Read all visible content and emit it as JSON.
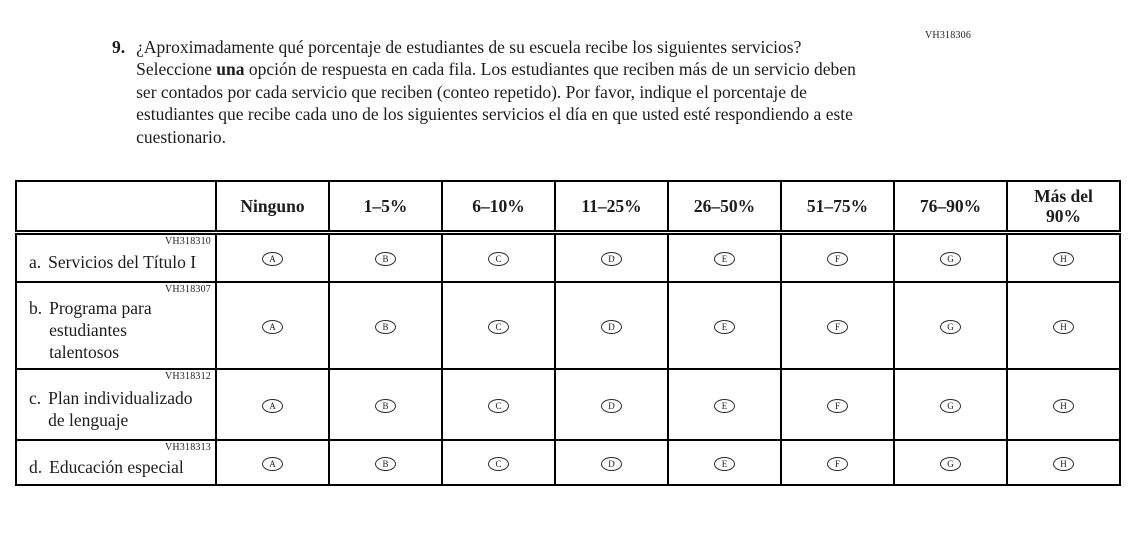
{
  "page": {
    "code_top_right": "VH318306"
  },
  "question": {
    "number": "9.",
    "text_before_bold": "¿Aproximadamente qué porcentaje de estudiantes de su escuela recibe los siguientes servicios? Seleccione ",
    "text_bold": "una",
    "text_after_bold": " opción de respuesta en cada fila. Los estudiantes que reciben más de un servicio deben ser contados por cada servicio que reciben (conteo repetido). Por favor, indique el porcentaje de estudiantes que recibe cada uno de los siguientes servicios el día en que usted esté respondiendo a este cuestionario."
  },
  "table": {
    "column_headers": [
      "Ninguno",
      "1–5%",
      "6–10%",
      "11–25%",
      "26–50%",
      "51–75%",
      "76–90%",
      "Más del\n90%"
    ],
    "options": [
      "A",
      "B",
      "C",
      "D",
      "E",
      "F",
      "G",
      "H"
    ],
    "rows": [
      {
        "code": "VH318310",
        "letter": "a.",
        "label": "Servicios del Título I"
      },
      {
        "code": "VH318307",
        "letter": "b.",
        "label": "Programa para estudiantes talentosos"
      },
      {
        "code": "VH318312",
        "letter": "c.",
        "label": "Plan individualizado de lenguaje"
      },
      {
        "code": "VH318313",
        "letter": "d.",
        "label": "Educación especial"
      }
    ]
  }
}
